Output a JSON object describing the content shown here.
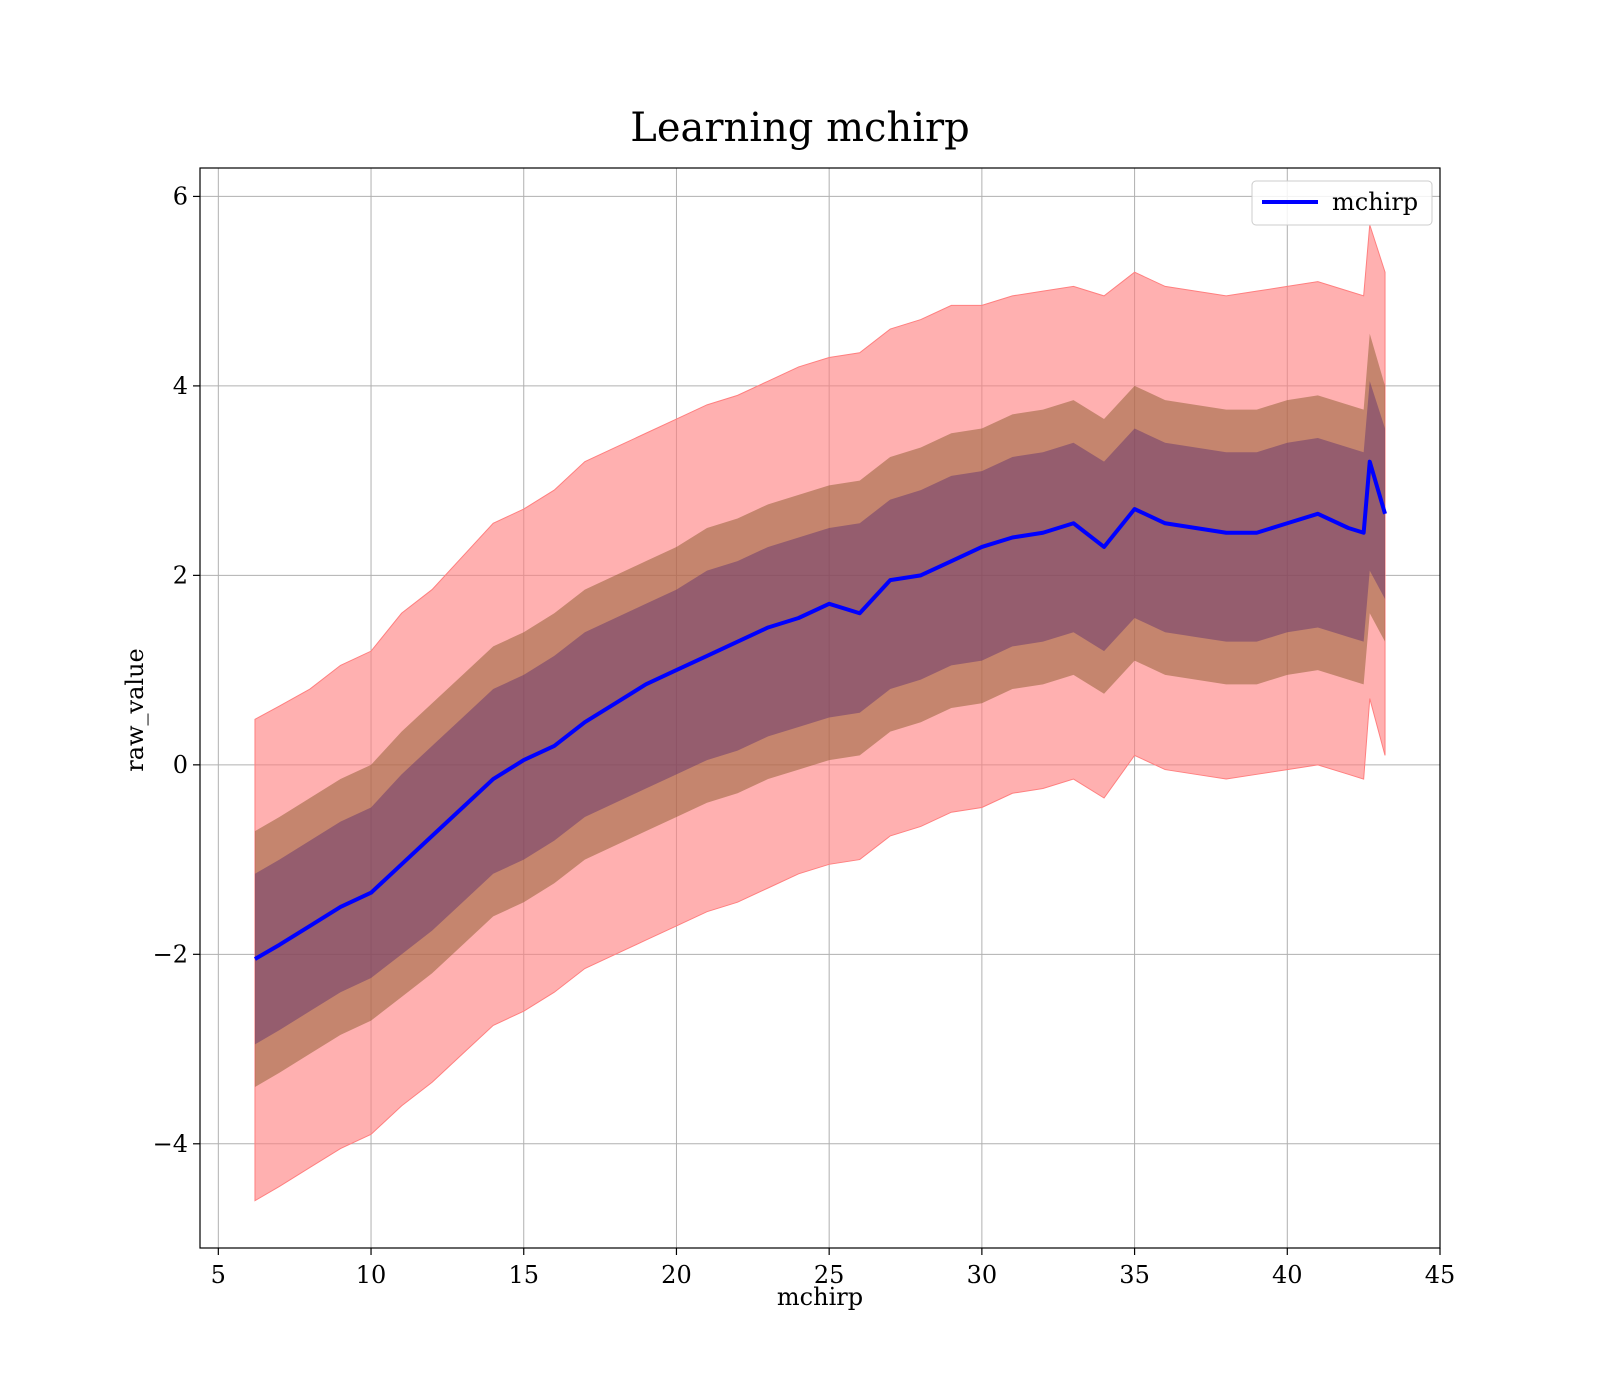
{
  "chart_data": {
    "type": "area",
    "title": "Learning mchirp",
    "xlabel": "mchirp",
    "ylabel": "raw_value",
    "xlim": [
      4.4,
      45
    ],
    "ylim": [
      -5.1,
      6.3
    ],
    "xticks": [
      5,
      10,
      15,
      20,
      25,
      30,
      35,
      40,
      45
    ],
    "yticks": [
      -4,
      -2,
      0,
      2,
      4,
      6
    ],
    "grid": true,
    "legend_position": "upper right",
    "colors": {
      "line": "#0000ff",
      "band_outer": "#ff7f7f",
      "band_middle": "#8b5a2b",
      "band_inner": "#5a2d6e"
    },
    "x": [
      6.2,
      7,
      8,
      9,
      10,
      11,
      12,
      13,
      14,
      15,
      16,
      17,
      18,
      19,
      20,
      21,
      22,
      23,
      24,
      25,
      26,
      27,
      28,
      29,
      30,
      31,
      32,
      33,
      34,
      35,
      36,
      37,
      38,
      39,
      40,
      41,
      42,
      42.5,
      42.7,
      43.2
    ],
    "series": [
      {
        "name": "mchirp",
        "values": [
          -2.05,
          -1.9,
          -1.7,
          -1.5,
          -1.35,
          -1.05,
          -0.75,
          -0.45,
          -0.15,
          0.05,
          0.2,
          0.45,
          0.65,
          0.85,
          1.0,
          1.15,
          1.3,
          1.45,
          1.55,
          1.7,
          1.6,
          1.95,
          2.0,
          2.15,
          2.3,
          2.4,
          2.45,
          2.55,
          2.3,
          2.7,
          2.55,
          2.5,
          2.45,
          2.45,
          2.55,
          2.65,
          2.5,
          2.45,
          3.2,
          2.65
        ]
      }
    ],
    "bands": {
      "outer_upper": [
        0.48,
        0.62,
        0.8,
        1.05,
        1.2,
        1.6,
        1.85,
        2.2,
        2.55,
        2.7,
        2.9,
        3.2,
        3.35,
        3.5,
        3.65,
        3.8,
        3.9,
        4.05,
        4.2,
        4.3,
        4.35,
        4.6,
        4.7,
        4.85,
        4.85,
        4.95,
        5.0,
        5.05,
        4.95,
        5.2,
        5.05,
        5.0,
        4.95,
        5.0,
        5.05,
        5.1,
        5.0,
        4.95,
        5.7,
        5.2
      ],
      "mid_upper": [
        -0.7,
        -0.55,
        -0.35,
        -0.15,
        0.0,
        0.35,
        0.65,
        0.95,
        1.25,
        1.4,
        1.6,
        1.85,
        2.0,
        2.15,
        2.3,
        2.5,
        2.6,
        2.75,
        2.85,
        2.95,
        3.0,
        3.25,
        3.35,
        3.5,
        3.55,
        3.7,
        3.75,
        3.85,
        3.65,
        4.0,
        3.85,
        3.8,
        3.75,
        3.75,
        3.85,
        3.9,
        3.8,
        3.75,
        4.55,
        4.0
      ],
      "inner_upper": [
        -1.15,
        -1.0,
        -0.8,
        -0.6,
        -0.45,
        -0.1,
        0.2,
        0.5,
        0.8,
        0.95,
        1.15,
        1.4,
        1.55,
        1.7,
        1.85,
        2.05,
        2.15,
        2.3,
        2.4,
        2.5,
        2.55,
        2.8,
        2.9,
        3.05,
        3.1,
        3.25,
        3.3,
        3.4,
        3.2,
        3.55,
        3.4,
        3.35,
        3.3,
        3.3,
        3.4,
        3.45,
        3.35,
        3.3,
        4.05,
        3.55
      ],
      "inner_lower": [
        -2.95,
        -2.8,
        -2.6,
        -2.4,
        -2.25,
        -2.0,
        -1.75,
        -1.45,
        -1.15,
        -1.0,
        -0.8,
        -0.55,
        -0.4,
        -0.25,
        -0.1,
        0.05,
        0.15,
        0.3,
        0.4,
        0.5,
        0.55,
        0.8,
        0.9,
        1.05,
        1.1,
        1.25,
        1.3,
        1.4,
        1.2,
        1.55,
        1.4,
        1.35,
        1.3,
        1.3,
        1.4,
        1.45,
        1.35,
        1.3,
        2.05,
        1.75
      ],
      "mid_lower": [
        -3.4,
        -3.25,
        -3.05,
        -2.85,
        -2.7,
        -2.45,
        -2.2,
        -1.9,
        -1.6,
        -1.45,
        -1.25,
        -1.0,
        -0.85,
        -0.7,
        -0.55,
        -0.4,
        -0.3,
        -0.15,
        -0.05,
        0.05,
        0.1,
        0.35,
        0.45,
        0.6,
        0.65,
        0.8,
        0.85,
        0.95,
        0.75,
        1.1,
        0.95,
        0.9,
        0.85,
        0.85,
        0.95,
        1.0,
        0.9,
        0.85,
        1.6,
        1.3
      ],
      "outer_lower": [
        -4.6,
        -4.45,
        -4.25,
        -4.05,
        -3.9,
        -3.6,
        -3.35,
        -3.05,
        -2.75,
        -2.6,
        -2.4,
        -2.15,
        -2.0,
        -1.85,
        -1.7,
        -1.55,
        -1.45,
        -1.3,
        -1.15,
        -1.05,
        -1.0,
        -0.75,
        -0.65,
        -0.5,
        -0.45,
        -0.3,
        -0.25,
        -0.15,
        -0.35,
        0.1,
        -0.05,
        -0.1,
        -0.15,
        -0.1,
        -0.05,
        0.0,
        -0.1,
        -0.15,
        0.7,
        0.1
      ]
    }
  }
}
